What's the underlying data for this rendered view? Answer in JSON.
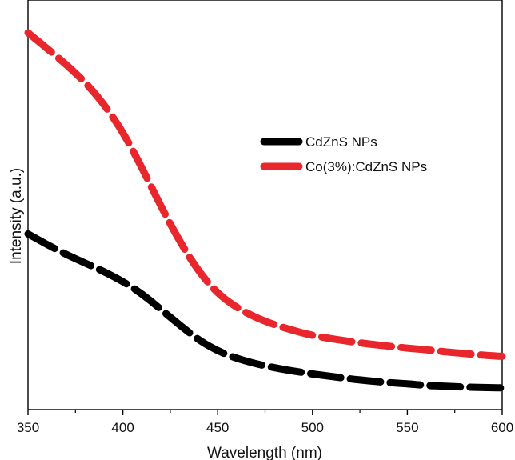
{
  "chart_data": {
    "type": "line",
    "title": "",
    "xlabel": "Wavelength (nm)",
    "ylabel": "Intensity (a.u.)",
    "xlim": [
      350,
      600
    ],
    "ylim": [
      0,
      1
    ],
    "y_ticks_labeled": false,
    "x_ticks": [
      350,
      400,
      450,
      500,
      550,
      600
    ],
    "x_tick_labels": [
      "350",
      "400",
      "450",
      "500",
      "550",
      "600"
    ],
    "grid": false,
    "legend_position": "right, upper-middle",
    "series": [
      {
        "name": "CdZnS NPs",
        "color": "#000000",
        "line_style": "thick dashed",
        "x": [
          350,
          360,
          370,
          380,
          390,
          400,
          410,
          420,
          430,
          440,
          450,
          460,
          470,
          480,
          490,
          500,
          510,
          520,
          530,
          540,
          550,
          560,
          570,
          580,
          590,
          600
        ],
        "y": [
          0.429,
          0.403,
          0.379,
          0.358,
          0.337,
          0.313,
          0.283,
          0.245,
          0.206,
          0.17,
          0.143,
          0.125,
          0.112,
          0.102,
          0.094,
          0.087,
          0.081,
          0.075,
          0.07,
          0.066,
          0.063,
          0.059,
          0.057,
          0.055,
          0.054,
          0.053
        ]
      },
      {
        "name": "Co(3%):CdZnS NPs",
        "color": "#e8262b",
        "line_style": "thick dashed",
        "x": [
          350,
          360,
          370,
          380,
          390,
          400,
          410,
          420,
          430,
          440,
          450,
          460,
          470,
          480,
          490,
          500,
          510,
          520,
          530,
          540,
          550,
          560,
          570,
          580,
          590,
          600
        ],
        "y": [
          0.92,
          0.882,
          0.843,
          0.8,
          0.746,
          0.678,
          0.591,
          0.497,
          0.41,
          0.337,
          0.283,
          0.249,
          0.225,
          0.207,
          0.193,
          0.181,
          0.173,
          0.166,
          0.16,
          0.155,
          0.15,
          0.146,
          0.141,
          0.137,
          0.133,
          0.13
        ]
      }
    ]
  }
}
